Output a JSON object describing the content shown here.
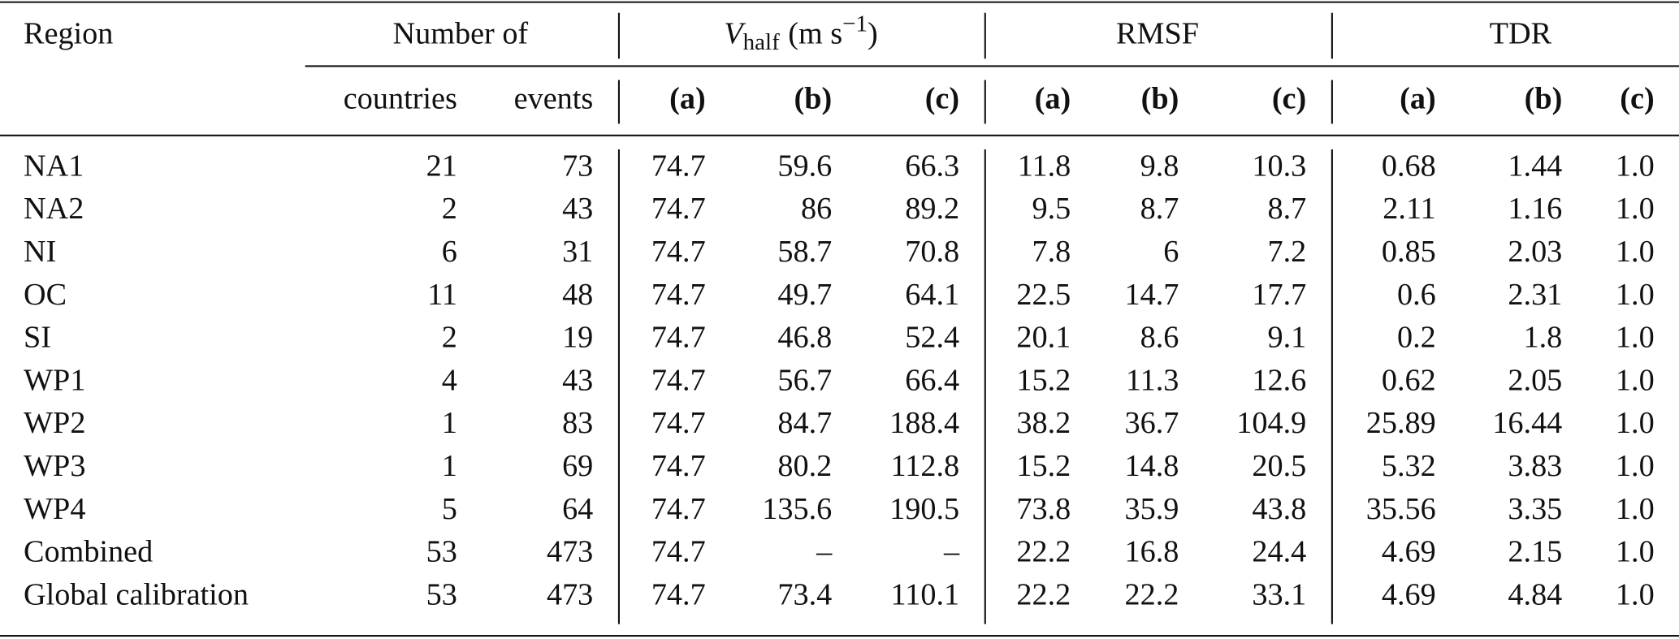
{
  "header": {
    "region": "Region",
    "number_of": "Number of",
    "vhalf": {
      "symbol": "V",
      "subscript": "half",
      "unit": "(m s",
      "exponent": "−1",
      "close": ")"
    },
    "rmsf": "RMSF",
    "tdr": "TDR",
    "subheaders": [
      "countries",
      "events",
      "(a)",
      "(b)",
      "(c)",
      "(a)",
      "(b)",
      "(c)",
      "(a)",
      "(b)",
      "(c)"
    ]
  },
  "table": {
    "rows": [
      [
        "NA1",
        "21",
        "73",
        "74.7",
        "59.6",
        "66.3",
        "11.8",
        "9.8",
        "10.3",
        "0.68",
        "1.44",
        "1.0"
      ],
      [
        "NA2",
        "2",
        "43",
        "74.7",
        "86",
        "89.2",
        "9.5",
        "8.7",
        "8.7",
        "2.11",
        "1.16",
        "1.0"
      ],
      [
        "NI",
        "6",
        "31",
        "74.7",
        "58.7",
        "70.8",
        "7.8",
        "6",
        "7.2",
        "0.85",
        "2.03",
        "1.0"
      ],
      [
        "OC",
        "11",
        "48",
        "74.7",
        "49.7",
        "64.1",
        "22.5",
        "14.7",
        "17.7",
        "0.6",
        "2.31",
        "1.0"
      ],
      [
        "SI",
        "2",
        "19",
        "74.7",
        "46.8",
        "52.4",
        "20.1",
        "8.6",
        "9.1",
        "0.2",
        "1.8",
        "1.0"
      ],
      [
        "WP1",
        "4",
        "43",
        "74.7",
        "56.7",
        "66.4",
        "15.2",
        "11.3",
        "12.6",
        "0.62",
        "2.05",
        "1.0"
      ],
      [
        "WP2",
        "1",
        "83",
        "74.7",
        "84.7",
        "188.4",
        "38.2",
        "36.7",
        "104.9",
        "25.89",
        "16.44",
        "1.0"
      ],
      [
        "WP3",
        "1",
        "69",
        "74.7",
        "80.2",
        "112.8",
        "15.2",
        "14.8",
        "20.5",
        "5.32",
        "3.83",
        "1.0"
      ],
      [
        "WP4",
        "5",
        "64",
        "74.7",
        "135.6",
        "190.5",
        "73.8",
        "35.9",
        "43.8",
        "35.56",
        "3.35",
        "1.0"
      ],
      [
        "Combined",
        "53",
        "473",
        "74.7",
        "–",
        "–",
        "22.2",
        "16.8",
        "24.4",
        "4.69",
        "2.15",
        "1.0"
      ],
      [
        "Global calibration",
        "53",
        "473",
        "74.7",
        "73.4",
        "110.1",
        "22.2",
        "22.2",
        "33.1",
        "4.69",
        "4.84",
        "1.0"
      ]
    ]
  }
}
